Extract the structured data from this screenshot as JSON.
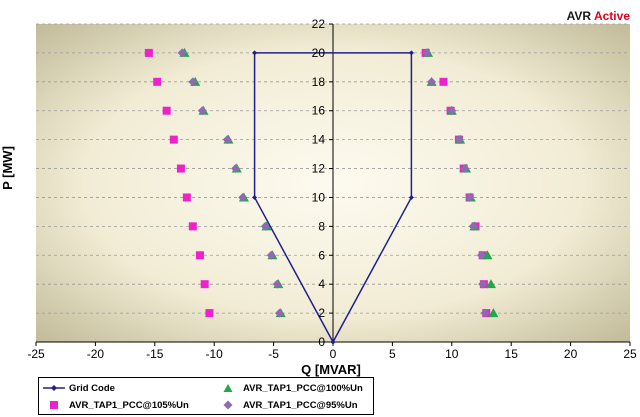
{
  "status": {
    "label": "AVR",
    "value": "Active",
    "value_color": "#e3001b"
  },
  "chart_data": {
    "type": "scatter",
    "xlabel": "Q [MVAR]",
    "ylabel": "P [MW]",
    "xlim": [
      -25,
      25
    ],
    "ylim": [
      0,
      22
    ],
    "x_ticks": [
      -25,
      -20,
      -15,
      -10,
      -5,
      0,
      5,
      10,
      15,
      20,
      25
    ],
    "y_ticks": [
      0,
      2,
      4,
      6,
      8,
      10,
      12,
      14,
      16,
      18,
      20,
      22
    ],
    "grid": "horizontal dashed",
    "legend_position": "bottom-left",
    "series": [
      {
        "name": "Grid Code",
        "kind": "line",
        "color": "#1f1f8f",
        "marker": "diamond",
        "points": [
          [
            0,
            0
          ],
          [
            -6.6,
            10
          ],
          [
            -6.6,
            20
          ],
          [
            6.6,
            20
          ],
          [
            6.6,
            10
          ],
          [
            0,
            0
          ]
        ]
      },
      {
        "name": "AVR_TAP1_PCC@100%Un",
        "kind": "scatter",
        "color": "#22a84a",
        "marker": "triangle",
        "points": [
          [
            -12.5,
            20
          ],
          [
            -11.6,
            18
          ],
          [
            -10.9,
            16
          ],
          [
            -8.8,
            14
          ],
          [
            -8.1,
            12
          ],
          [
            -7.5,
            10
          ],
          [
            -5.6,
            8
          ],
          [
            -5.1,
            6
          ],
          [
            -4.6,
            4
          ],
          [
            -4.4,
            2
          ],
          [
            8.0,
            20
          ],
          [
            8.3,
            18
          ],
          [
            10.0,
            16
          ],
          [
            10.7,
            14
          ],
          [
            11.2,
            12
          ],
          [
            11.6,
            10
          ],
          [
            11.9,
            8
          ],
          [
            13.0,
            6
          ],
          [
            13.3,
            4
          ],
          [
            13.5,
            2
          ]
        ]
      },
      {
        "name": "AVR_TAP1_PCC@105%Un",
        "kind": "scatter",
        "color": "#ee22cc",
        "marker": "square",
        "points": [
          [
            -15.5,
            20
          ],
          [
            -14.8,
            18
          ],
          [
            -14.0,
            16
          ],
          [
            -13.4,
            14
          ],
          [
            -12.8,
            12
          ],
          [
            -12.3,
            10
          ],
          [
            -11.8,
            8
          ],
          [
            -11.2,
            6
          ],
          [
            -10.8,
            4
          ],
          [
            -10.4,
            2
          ],
          [
            7.8,
            20
          ],
          [
            9.3,
            18
          ],
          [
            9.9,
            16
          ],
          [
            10.6,
            14
          ],
          [
            11.0,
            12
          ],
          [
            11.5,
            10
          ],
          [
            12.0,
            8
          ],
          [
            12.6,
            6
          ],
          [
            12.7,
            4
          ],
          [
            12.9,
            2
          ]
        ]
      },
      {
        "name": "AVR_TAP1_PCC@95%Un",
        "kind": "scatter",
        "color": "#8e6bb0",
        "marker": "diamond",
        "points": [
          [
            -12.7,
            20
          ],
          [
            -11.8,
            18
          ],
          [
            -11.0,
            16
          ],
          [
            -8.9,
            14
          ],
          [
            -8.2,
            12
          ],
          [
            -7.6,
            10
          ],
          [
            -5.7,
            8
          ],
          [
            -5.2,
            6
          ],
          [
            -4.7,
            4
          ],
          [
            -4.5,
            2
          ],
          [
            7.9,
            20
          ],
          [
            8.3,
            18
          ],
          [
            10.0,
            16
          ],
          [
            10.6,
            14
          ],
          [
            11.1,
            12
          ],
          [
            11.5,
            10
          ],
          [
            11.8,
            8
          ],
          [
            12.5,
            6
          ],
          [
            12.6,
            4
          ],
          [
            12.8,
            2
          ]
        ]
      }
    ]
  }
}
